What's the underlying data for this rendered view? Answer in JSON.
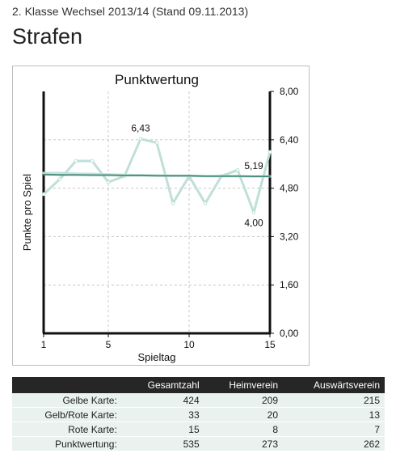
{
  "header": {
    "subtitle": "2. Klasse Wechsel 2013/14 (Stand 09.11.2013)",
    "title": "Strafen"
  },
  "colors": {
    "series_light": "#bfe0d8",
    "series_dark": "#4f8f80",
    "frame": "#111111",
    "grid": "#c8c8c8"
  },
  "chart_data": {
    "type": "line",
    "title": "Punktwertung",
    "xlabel": "Spieltag",
    "ylabel": "Punkte pro Spiel",
    "x": [
      1,
      2,
      3,
      4,
      5,
      6,
      7,
      8,
      9,
      10,
      11,
      12,
      13,
      14,
      15
    ],
    "xticks": [
      1,
      5,
      10,
      15
    ],
    "ylim": [
      0,
      8
    ],
    "yticks": [
      "0,00",
      "1,60",
      "3,20",
      "4,80",
      "6,40",
      "8,00"
    ],
    "ytick_values": [
      0,
      1.6,
      3.2,
      4.8,
      6.4,
      8.0
    ],
    "grid": true,
    "series": [
      {
        "name": "",
        "style": "points",
        "values": [
          4.6,
          5.1,
          5.7,
          5.7,
          5.0,
          5.2,
          6.43,
          6.3,
          4.3,
          5.2,
          4.3,
          5.2,
          5.4,
          4.0,
          6.0
        ]
      },
      {
        "name": "",
        "style": "average",
        "values": [
          5.3,
          5.3,
          5.28,
          5.27,
          5.25,
          5.24,
          5.23,
          5.22,
          5.21,
          5.21,
          5.2,
          5.2,
          5.2,
          5.19,
          5.19
        ]
      },
      {
        "name": "",
        "style": "trend",
        "values": [
          5.25,
          5.24,
          5.24,
          5.23,
          5.23,
          5.22,
          5.22,
          5.21,
          5.21,
          5.21,
          5.2,
          5.2,
          5.2,
          5.19,
          5.19
        ]
      }
    ],
    "annotations": [
      {
        "x": 7,
        "y": 6.43,
        "text": "6,43",
        "pos": "above"
      },
      {
        "x": 14,
        "y": 5.19,
        "text": "5,19",
        "pos": "above"
      },
      {
        "x": 14,
        "y": 4.0,
        "text": "4,00",
        "pos": "below"
      }
    ]
  },
  "table": {
    "columns": [
      "",
      "Gesamtzahl",
      "Heimverein",
      "Auswärtsverein"
    ],
    "rows": [
      {
        "label": "Gelbe Karte:",
        "values": [
          "424",
          "209",
          "215"
        ]
      },
      {
        "label": "Gelb/Rote Karte:",
        "values": [
          "33",
          "20",
          "13"
        ]
      },
      {
        "label": "Rote Karte:",
        "values": [
          "15",
          "8",
          "7"
        ]
      },
      {
        "label": "Punktwertung:",
        "values": [
          "535",
          "273",
          "262"
        ]
      }
    ]
  }
}
